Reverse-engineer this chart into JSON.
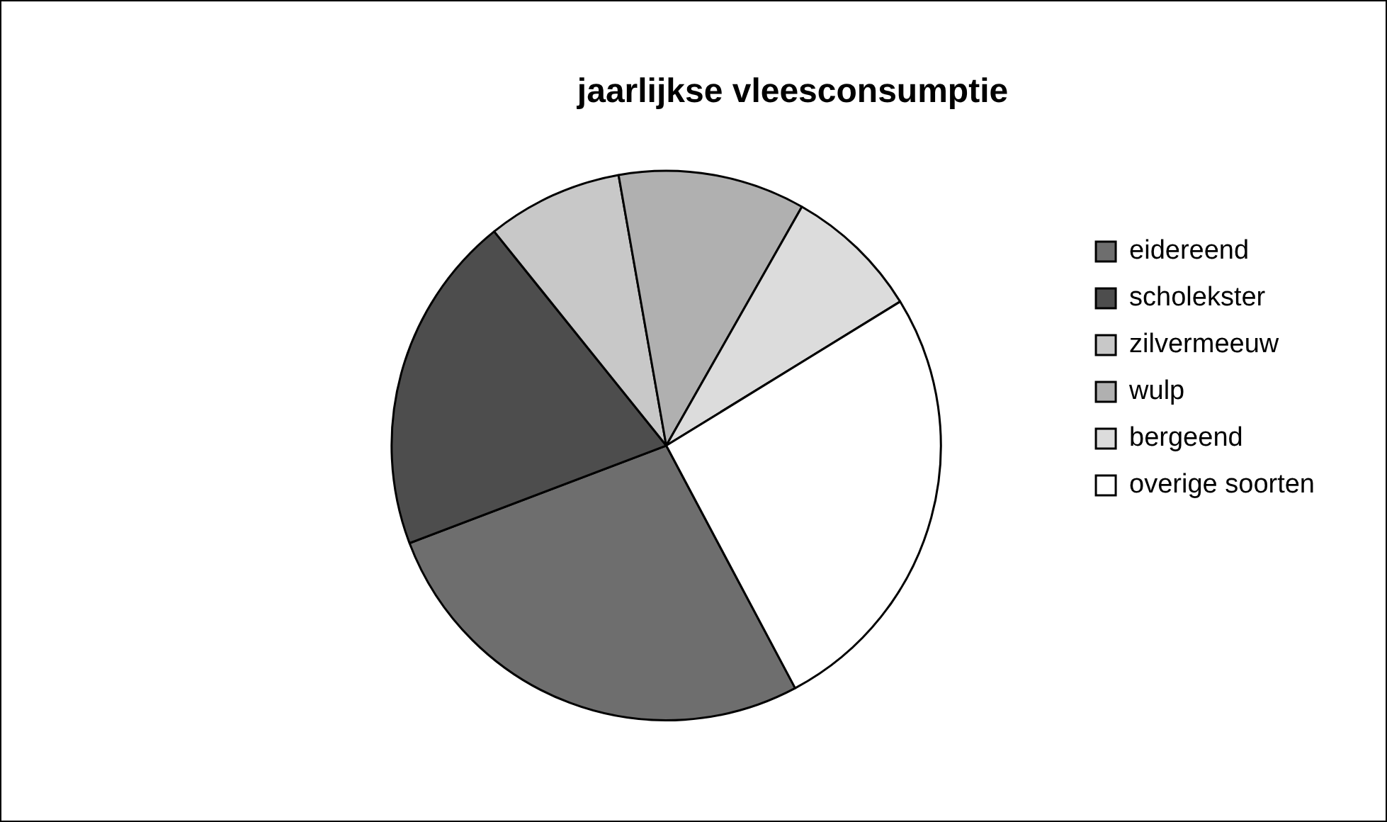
{
  "chart_data": {
    "type": "pie",
    "title": "jaarlijkse vleesconsumptie",
    "categories": [
      "eidereend",
      "scholekster",
      "zilvermeeuw",
      "wulp",
      "bergeend",
      "overige soorten"
    ],
    "values": [
      27,
      20,
      8,
      11,
      8,
      26
    ],
    "colors": [
      "#6e6e6e",
      "#4d4d4d",
      "#c8c8c8",
      "#b0b0b0",
      "#dcdcdc",
      "#ffffff"
    ],
    "legend": "right"
  }
}
